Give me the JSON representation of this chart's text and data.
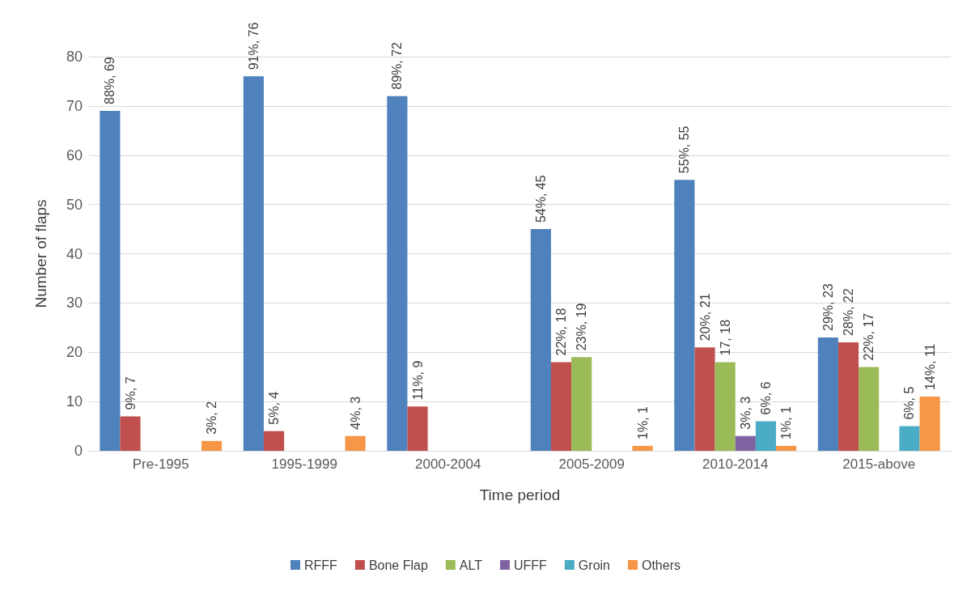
{
  "chart_data": {
    "type": "bar",
    "xlabel": "Time period",
    "ylabel": "Number of flaps",
    "categories": [
      "Pre-1995",
      "1995-1999",
      "2000-2004",
      "2005-2009",
      "2010-2014",
      "2015-above"
    ],
    "series": [
      {
        "name": "RFFF",
        "color": "#4f81bd",
        "values": [
          69,
          76,
          72,
          45,
          55,
          23
        ],
        "value_labels": [
          "88%, 69",
          "91%, 76",
          "89%, 72",
          "54%, 45",
          "55%, 55",
          "29%, 23"
        ]
      },
      {
        "name": "Bone Flap",
        "color": "#c0504d",
        "values": [
          7,
          4,
          9,
          18,
          21,
          22
        ],
        "value_labels": [
          "9%, 7",
          "5%, 4",
          "11%, 9",
          "22%, 18",
          "20%, 21",
          "28%, 22"
        ]
      },
      {
        "name": "ALT",
        "color": "#9bbb59",
        "values": [
          0,
          0,
          0,
          19,
          18,
          17
        ],
        "value_labels": [
          null,
          null,
          null,
          "23%, 19",
          "17, 18",
          "22%, 17"
        ]
      },
      {
        "name": "UFFF",
        "color": "#8064a2",
        "values": [
          0,
          0,
          0,
          0,
          3,
          0
        ],
        "value_labels": [
          null,
          null,
          null,
          null,
          "3%, 3",
          null
        ]
      },
      {
        "name": "Groin",
        "color": "#4bacc6",
        "values": [
          0,
          0,
          0,
          0,
          6,
          5
        ],
        "value_labels": [
          null,
          null,
          null,
          null,
          "6%, 6",
          "6%, 5"
        ]
      },
      {
        "name": "Others",
        "color": "#f79646",
        "values": [
          2,
          3,
          0,
          1,
          1,
          11
        ],
        "value_labels": [
          "3%, 2",
          "4%, 3",
          null,
          "1%, 1",
          "1%, 1",
          "14%, 11"
        ]
      }
    ],
    "ylim": [
      0,
      80
    ],
    "yticks": [
      0,
      10,
      20,
      30,
      40,
      50,
      60,
      70,
      80
    ],
    "grid": "y",
    "legend": "bottom"
  }
}
